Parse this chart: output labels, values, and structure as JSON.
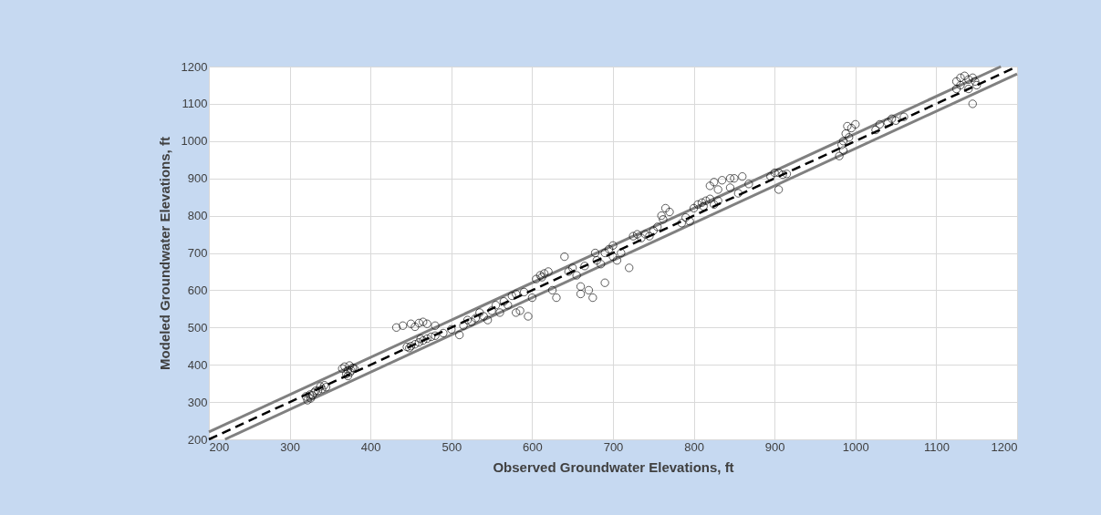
{
  "chart_data": {
    "type": "scatter",
    "xlabel": "Observed Groundwater Elevations, ft",
    "ylabel": "Modeled Groundwater Elevations, ft",
    "xlim": [
      200,
      1200
    ],
    "ylim": [
      200,
      1200
    ],
    "xticks": [
      200,
      300,
      400,
      500,
      600,
      700,
      800,
      900,
      1000,
      1100,
      1200
    ],
    "yticks": [
      200,
      300,
      400,
      500,
      600,
      700,
      800,
      900,
      1000,
      1100,
      1200
    ],
    "grid": true,
    "series": [
      {
        "type": "line",
        "color": "#808080",
        "line_style": "solid",
        "x": [
          200,
          1180
        ],
        "values": [
          220,
          1200
        ]
      },
      {
        "type": "line",
        "color": "#808080",
        "line_style": "solid",
        "x": [
          220,
          1200
        ],
        "values": [
          200,
          1180
        ]
      },
      {
        "type": "line",
        "color": "#000000",
        "line_style": "dashed",
        "x": [
          200,
          1200
        ],
        "values": [
          200,
          1200
        ]
      },
      {
        "color": "#000000",
        "marker": "circle",
        "x": [
          320,
          325,
          330,
          335,
          340,
          345,
          322,
          328,
          332,
          338,
          343,
          326,
          365,
          368,
          372,
          375,
          378,
          370,
          374,
          380,
          372,
          376,
          432,
          440,
          450,
          460,
          470,
          480,
          455,
          465,
          445,
          450,
          455,
          460,
          465,
          470,
          475,
          480,
          448,
          462,
          490,
          500,
          510,
          515,
          520,
          525,
          530,
          540,
          550,
          560,
          545,
          555,
          535,
          570,
          575,
          580,
          590,
          585,
          595,
          600,
          565,
          580,
          605,
          610,
          615,
          620,
          612,
          625,
          630,
          640,
          645,
          650,
          655,
          660,
          665,
          670,
          675,
          680,
          685,
          690,
          695,
          700,
          705,
          690,
          660,
          678,
          710,
          720,
          700,
          725,
          730,
          740,
          745,
          735,
          750,
          760,
          765,
          770,
          762,
          755,
          790,
          785,
          795,
          800,
          805,
          810,
          815,
          820,
          825,
          830,
          812,
          820,
          825,
          835,
          845,
          850,
          860,
          830,
          845,
          868,
          855,
          895,
          900,
          905,
          910,
          915,
          905,
          980,
          983,
          985,
          988,
          990,
          995,
          1000,
          985,
          992,
          1025,
          1030,
          1040,
          1045,
          1050,
          1060,
          1125,
          1130,
          1135,
          1140,
          1145,
          1130,
          1140,
          1145,
          1150,
          1148,
          1125
        ],
        "values": [
          315,
          320,
          325,
          330,
          335,
          340,
          305,
          318,
          330,
          342,
          345,
          310,
          390,
          395,
          385,
          380,
          392,
          375,
          398,
          390,
          370,
          385,
          500,
          505,
          510,
          512,
          510,
          505,
          502,
          515,
          448,
          450,
          455,
          460,
          465,
          470,
          475,
          478,
          445,
          470,
          485,
          495,
          480,
          505,
          520,
          515,
          525,
          530,
          545,
          540,
          520,
          560,
          540,
          560,
          585,
          590,
          595,
          545,
          530,
          580,
          570,
          540,
          630,
          640,
          645,
          650,
          635,
          600,
          580,
          690,
          650,
          660,
          640,
          610,
          665,
          600,
          580,
          680,
          670,
          700,
          710,
          690,
          680,
          620,
          590,
          700,
          700,
          660,
          720,
          745,
          750,
          750,
          745,
          740,
          760,
          800,
          820,
          810,
          790,
          770,
          795,
          780,
          785,
          820,
          830,
          835,
          840,
          845,
          830,
          840,
          825,
          880,
          890,
          895,
          900,
          900,
          905,
          870,
          875,
          885,
          860,
          905,
          915,
          915,
          910,
          912,
          870,
          960,
          990,
          1000,
          1020,
          1040,
          1035,
          1045,
          975,
          1010,
          1030,
          1045,
          1050,
          1060,
          1055,
          1065,
          1160,
          1170,
          1175,
          1165,
          1170,
          1150,
          1140,
          1100,
          1150,
          1160,
          1140
        ]
      }
    ]
  }
}
